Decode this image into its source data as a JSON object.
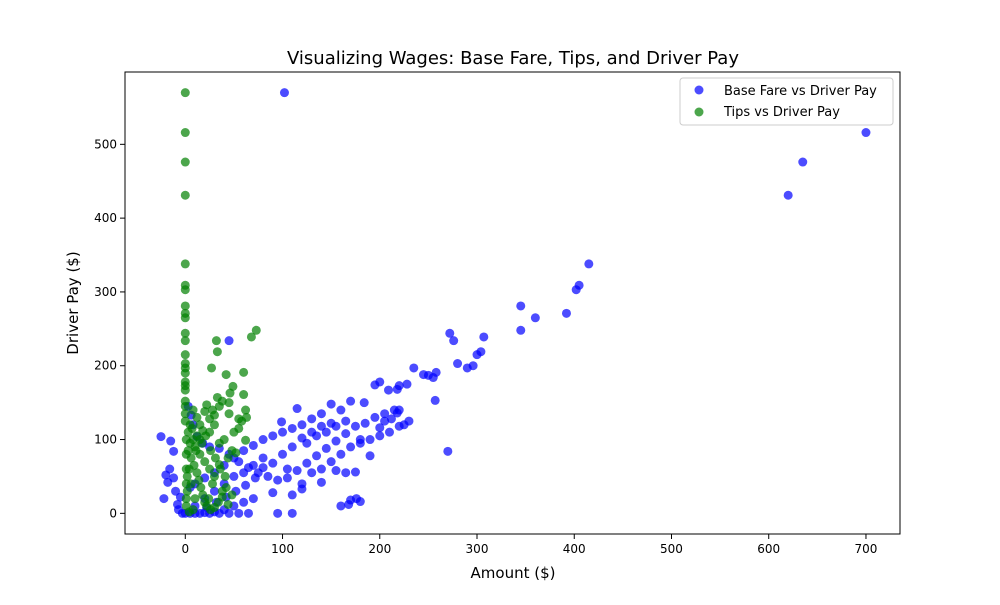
{
  "chart_data": {
    "type": "scatter",
    "title": "Visualizing Wages: Base Fare, Tips, and Driver Pay",
    "xlabel": "Amount ($)",
    "ylabel": "Driver Pay ($)",
    "xlim": [
      -62,
      735
    ],
    "ylim": [
      -28,
      598
    ],
    "xticks": [
      0,
      100,
      200,
      300,
      400,
      500,
      600,
      700
    ],
    "yticks": [
      0,
      100,
      200,
      300,
      400,
      500
    ],
    "grid": false,
    "legend": {
      "position": "top-right"
    },
    "series": [
      {
        "name": "Base Fare vs Driver Pay",
        "color": "#0000ff",
        "points": [
          [
            700,
            516
          ],
          [
            635,
            476
          ],
          [
            620,
            431
          ],
          [
            102,
            570
          ],
          [
            415,
            338
          ],
          [
            405,
            309
          ],
          [
            402,
            303
          ],
          [
            345,
            281
          ],
          [
            392,
            271
          ],
          [
            360,
            265
          ],
          [
            345,
            248
          ],
          [
            272,
            244
          ],
          [
            307,
            239
          ],
          [
            276,
            234
          ],
          [
            304,
            219
          ],
          [
            300,
            215
          ],
          [
            280,
            203
          ],
          [
            296,
            200
          ],
          [
            290,
            197
          ],
          [
            235,
            197
          ],
          [
            258,
            191
          ],
          [
            245,
            188
          ],
          [
            250,
            187
          ],
          [
            255,
            184
          ],
          [
            228,
            175
          ],
          [
            200,
            178
          ],
          [
            195,
            174
          ],
          [
            220,
            173
          ],
          [
            218,
            168
          ],
          [
            209,
            167
          ],
          [
            257,
            153
          ],
          [
            220,
            140
          ],
          [
            184,
            150
          ],
          [
            170,
            152
          ],
          [
            150,
            148
          ],
          [
            160,
            140
          ],
          [
            140,
            135
          ],
          [
            130,
            128
          ],
          [
            120,
            120
          ],
          [
            110,
            115
          ],
          [
            100,
            110
          ],
          [
            90,
            105
          ],
          [
            80,
            100
          ],
          [
            70,
            92
          ],
          [
            60,
            85
          ],
          [
            50,
            75
          ],
          [
            40,
            65
          ],
          [
            30,
            55
          ],
          [
            20,
            48
          ],
          [
            10,
            40
          ],
          [
            5,
            35
          ],
          [
            45,
            234
          ],
          [
            115,
            142
          ],
          [
            99,
            124
          ],
          [
            105,
            60
          ],
          [
            120,
            40
          ],
          [
            130,
            55
          ],
          [
            140,
            60
          ],
          [
            150,
            70
          ],
          [
            160,
            80
          ],
          [
            170,
            90
          ],
          [
            180,
            95
          ],
          [
            190,
            100
          ],
          [
            200,
            105
          ],
          [
            210,
            110
          ],
          [
            220,
            118
          ],
          [
            230,
            125
          ],
          [
            190,
            78
          ],
          [
            180,
            100
          ],
          [
            175,
            56
          ],
          [
            165,
            55
          ],
          [
            160,
            10
          ],
          [
            168,
            12
          ],
          [
            170,
            18
          ],
          [
            176,
            20
          ],
          [
            180,
            16
          ],
          [
            270,
            84
          ],
          [
            140,
            42
          ],
          [
            155,
            58
          ],
          [
            110,
            25
          ],
          [
            120,
            33
          ],
          [
            90,
            28
          ],
          [
            70,
            20
          ],
          [
            60,
            15
          ],
          [
            50,
            10
          ],
          [
            40,
            5
          ],
          [
            30,
            2
          ],
          [
            20,
            1
          ],
          [
            10,
            0
          ],
          [
            0,
            0
          ],
          [
            5,
            0
          ],
          [
            15,
            0
          ],
          [
            25,
            0
          ],
          [
            35,
            0
          ],
          [
            45,
            0
          ],
          [
            55,
            0
          ],
          [
            65,
            0
          ],
          [
            95,
            0
          ],
          [
            110,
            0
          ],
          [
            -3,
            0
          ],
          [
            -25,
            104
          ],
          [
            -15,
            98
          ],
          [
            -20,
            52
          ],
          [
            -22,
            20
          ],
          [
            -16,
            60
          ],
          [
            -12,
            84
          ],
          [
            -12,
            48
          ],
          [
            -18,
            42
          ],
          [
            -10,
            30
          ],
          [
            -8,
            12
          ],
          [
            -5,
            22
          ],
          [
            -7,
            5
          ],
          [
            3,
            145
          ],
          [
            6,
            133
          ],
          [
            8,
            120
          ],
          [
            12,
            104
          ],
          [
            18,
            95
          ],
          [
            25,
            90
          ],
          [
            35,
            88
          ],
          [
            45,
            80
          ],
          [
            55,
            70
          ],
          [
            65,
            62
          ],
          [
            75,
            55
          ],
          [
            85,
            50
          ],
          [
            95,
            45
          ],
          [
            105,
            48
          ],
          [
            115,
            58
          ],
          [
            125,
            68
          ],
          [
            135,
            78
          ],
          [
            145,
            88
          ],
          [
            155,
            98
          ],
          [
            165,
            108
          ],
          [
            175,
            118
          ],
          [
            185,
            122
          ],
          [
            195,
            130
          ],
          [
            205,
            135
          ],
          [
            215,
            140
          ],
          [
            125,
            95
          ],
          [
            135,
            105
          ],
          [
            145,
            110
          ],
          [
            155,
            118
          ],
          [
            165,
            125
          ],
          [
            100,
            80
          ],
          [
            110,
            90
          ],
          [
            80,
            75
          ],
          [
            70,
            65
          ],
          [
            60,
            55
          ],
          [
            50,
            50
          ],
          [
            40,
            40
          ],
          [
            30,
            30
          ],
          [
            20,
            20
          ],
          [
            10,
            10
          ],
          [
            225,
            120
          ],
          [
            218,
            136
          ],
          [
            205,
            125
          ],
          [
            200,
            116
          ],
          [
            212,
            128
          ],
          [
            150,
            122
          ],
          [
            140,
            118
          ],
          [
            130,
            110
          ],
          [
            120,
            102
          ],
          [
            90,
            68
          ],
          [
            80,
            62
          ],
          [
            72,
            48
          ],
          [
            62,
            38
          ],
          [
            52,
            30
          ],
          [
            42,
            22
          ],
          [
            32,
            15
          ],
          [
            22,
            8
          ]
        ]
      },
      {
        "name": "Tips vs Driver Pay",
        "color": "#008000",
        "points": [
          [
            0,
            570
          ],
          [
            0,
            516
          ],
          [
            0,
            476
          ],
          [
            0,
            431
          ],
          [
            0,
            338
          ],
          [
            0,
            309
          ],
          [
            0,
            303
          ],
          [
            0,
            281
          ],
          [
            0,
            271
          ],
          [
            0,
            265
          ],
          [
            0,
            244
          ],
          [
            0,
            234
          ],
          [
            0,
            215
          ],
          [
            0,
            203
          ],
          [
            0,
            197
          ],
          [
            0,
            190
          ],
          [
            0,
            178
          ],
          [
            0,
            173
          ],
          [
            0,
            167
          ],
          [
            0,
            152
          ],
          [
            0,
            145
          ],
          [
            0,
            135
          ],
          [
            0,
            125
          ],
          [
            73,
            248
          ],
          [
            68,
            239
          ],
          [
            32,
            234
          ],
          [
            33,
            219
          ],
          [
            27,
            197
          ],
          [
            60,
            191
          ],
          [
            42,
            188
          ],
          [
            49,
            172
          ],
          [
            46,
            163
          ],
          [
            60,
            161
          ],
          [
            33,
            157
          ],
          [
            38,
            152
          ],
          [
            45,
            150
          ],
          [
            22,
            147
          ],
          [
            35,
            145
          ],
          [
            28,
            140
          ],
          [
            45,
            135
          ],
          [
            55,
            128
          ],
          [
            58,
            125
          ],
          [
            63,
            130
          ],
          [
            30,
            133
          ],
          [
            20,
            138
          ],
          [
            25,
            128
          ],
          [
            15,
            120
          ],
          [
            18,
            112
          ],
          [
            12,
            105
          ],
          [
            8,
            100
          ],
          [
            62,
            99
          ],
          [
            48,
            85
          ],
          [
            52,
            82
          ],
          [
            44,
            75
          ],
          [
            35,
            66
          ],
          [
            25,
            60
          ],
          [
            30,
            50
          ],
          [
            42,
            35
          ],
          [
            48,
            25
          ],
          [
            38,
            30
          ],
          [
            28,
            40
          ],
          [
            20,
            70
          ],
          [
            15,
            80
          ],
          [
            10,
            90
          ],
          [
            5,
            95
          ],
          [
            3,
            85
          ],
          [
            6,
            75
          ],
          [
            9,
            65
          ],
          [
            12,
            55
          ],
          [
            14,
            45
          ],
          [
            16,
            35
          ],
          [
            18,
            25
          ],
          [
            20,
            15
          ],
          [
            22,
            10
          ],
          [
            8,
            5
          ],
          [
            4,
            2
          ],
          [
            2,
            30
          ],
          [
            2,
            50
          ],
          [
            4,
            60
          ],
          [
            6,
            40
          ],
          [
            10,
            20
          ],
          [
            25,
            110
          ],
          [
            30,
            120
          ],
          [
            35,
            95
          ],
          [
            40,
            100
          ],
          [
            50,
            110
          ],
          [
            55,
            115
          ],
          [
            62,
            140
          ],
          [
            15,
            100
          ],
          [
            12,
            130
          ],
          [
            8,
            140
          ],
          [
            5,
            120
          ],
          [
            3,
            110
          ],
          [
            1,
            100
          ],
          [
            1,
            80
          ],
          [
            1,
            60
          ],
          [
            1,
            40
          ],
          [
            1,
            20
          ],
          [
            1,
            10
          ],
          [
            7,
            115
          ],
          [
            11,
            85
          ],
          [
            17,
            95
          ],
          [
            21,
            105
          ],
          [
            26,
            85
          ],
          [
            31,
            75
          ],
          [
            36,
            60
          ],
          [
            41,
            50
          ],
          [
            24,
            20
          ],
          [
            26,
            5
          ],
          [
            30,
            8
          ],
          [
            34,
            15
          ],
          [
            38,
            22
          ],
          [
            44,
            12
          ]
        ]
      }
    ]
  }
}
